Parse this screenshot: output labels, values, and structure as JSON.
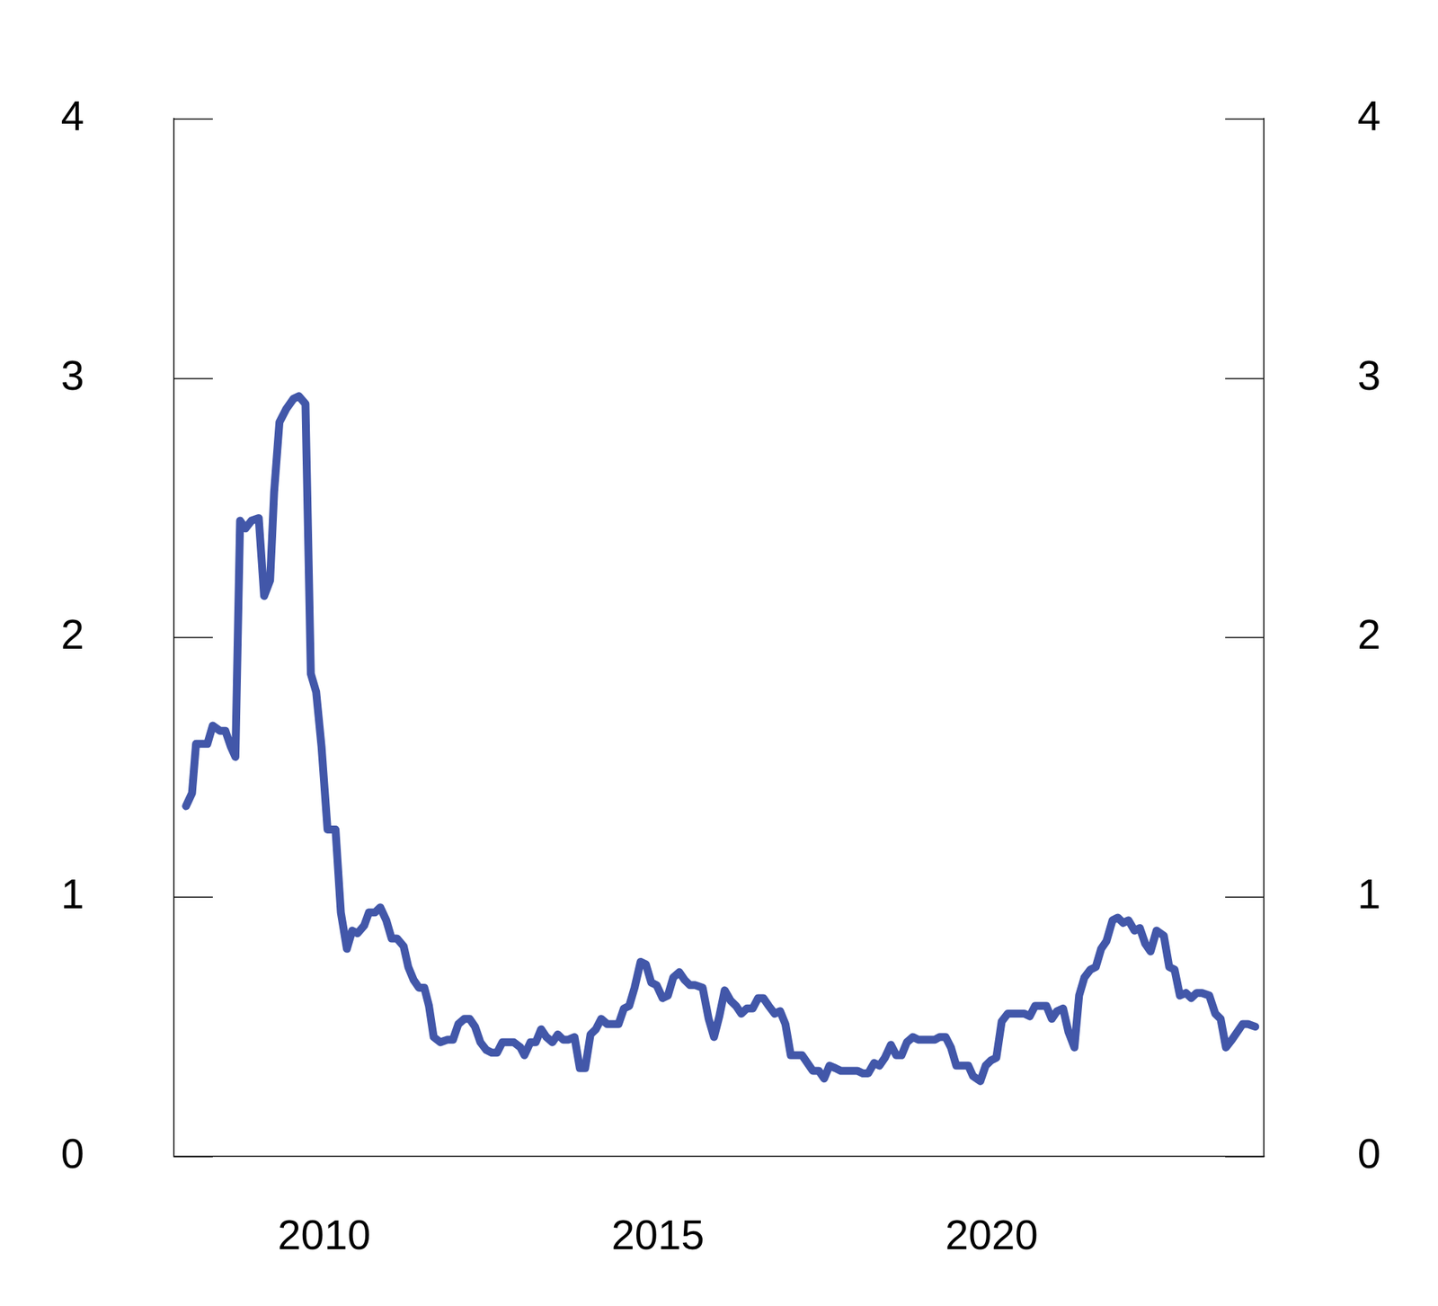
{
  "chart_data": {
    "type": "line",
    "x": [
      2007.93,
      2008.02,
      2008.08,
      2008.25,
      2008.33,
      2008.44,
      2008.52,
      2008.6,
      2008.67,
      2008.74,
      2008.82,
      2008.91,
      2009.02,
      2009.1,
      2009.19,
      2009.25,
      2009.33,
      2009.43,
      2009.54,
      2009.62,
      2009.72,
      2009.8,
      2009.88,
      2009.96,
      2010.05,
      2010.17,
      2010.25,
      2010.34,
      2010.42,
      2010.5,
      2010.6,
      2010.67,
      2010.76,
      2010.84,
      2010.93,
      2011.01,
      2011.09,
      2011.19,
      2011.26,
      2011.34,
      2011.42,
      2011.5,
      2011.57,
      2011.64,
      2011.74,
      2011.85,
      2011.93,
      2012.01,
      2012.1,
      2012.18,
      2012.26,
      2012.34,
      2012.43,
      2012.51,
      2012.59,
      2012.67,
      2012.84,
      2012.94,
      2013.0,
      2013.09,
      2013.17,
      2013.25,
      2013.33,
      2013.42,
      2013.5,
      2013.58,
      2013.66,
      2013.75,
      2013.83,
      2013.91,
      2013.99,
      2014.07,
      2014.15,
      2014.24,
      2014.41,
      2014.49,
      2014.57,
      2014.65,
      2014.74,
      2014.82,
      2014.9,
      2014.98,
      2015.07,
      2015.15,
      2015.23,
      2015.32,
      2015.4,
      2015.48,
      2015.56,
      2015.67,
      2015.76,
      2015.84,
      2015.92,
      2016.0,
      2016.09,
      2016.17,
      2016.25,
      2016.33,
      2016.42,
      2016.5,
      2016.58,
      2016.66,
      2016.75,
      2016.83,
      2016.91,
      2016.99,
      2017.08,
      2017.16,
      2017.24,
      2017.32,
      2017.41,
      2017.49,
      2017.57,
      2017.66,
      2017.74,
      2017.82,
      2017.99,
      2018.07,
      2018.15,
      2018.24,
      2018.32,
      2018.4,
      2018.49,
      2018.57,
      2018.65,
      2018.73,
      2018.82,
      2018.9,
      2019.15,
      2019.22,
      2019.31,
      2019.39,
      2019.47,
      2019.55,
      2019.65,
      2019.72,
      2019.83,
      2019.91,
      2019.99,
      2020.07,
      2020.15,
      2020.24,
      2020.4,
      2020.49,
      2020.57,
      2020.65,
      2020.82,
      2020.9,
      2020.98,
      2021.07,
      2021.15,
      2021.24,
      2021.31,
      2021.39,
      2021.48,
      2021.56,
      2021.64,
      2021.72,
      2021.81,
      2021.89,
      2021.97,
      2022.05,
      2022.14,
      2022.22,
      2022.3,
      2022.38,
      2022.47,
      2022.58,
      2022.66,
      2022.74,
      2022.82,
      2022.91,
      2022.99,
      2023.07,
      2023.15,
      2023.26,
      2023.35,
      2023.43,
      2023.51,
      2023.6,
      2023.68,
      2023.76,
      2023.84,
      2023.95
    ],
    "values": [
      1.35,
      1.4,
      1.59,
      1.59,
      1.66,
      1.64,
      1.64,
      1.58,
      1.54,
      2.45,
      2.42,
      2.45,
      2.46,
      2.16,
      2.22,
      2.56,
      2.83,
      2.88,
      2.92,
      2.93,
      2.9,
      1.86,
      1.79,
      1.58,
      1.26,
      1.26,
      0.94,
      0.8,
      0.87,
      0.86,
      0.89,
      0.94,
      0.94,
      0.96,
      0.91,
      0.84,
      0.84,
      0.81,
      0.73,
      0.68,
      0.65,
      0.65,
      0.58,
      0.46,
      0.44,
      0.45,
      0.45,
      0.51,
      0.53,
      0.53,
      0.5,
      0.44,
      0.41,
      0.4,
      0.4,
      0.44,
      0.44,
      0.42,
      0.39,
      0.44,
      0.44,
      0.49,
      0.46,
      0.44,
      0.47,
      0.45,
      0.45,
      0.46,
      0.34,
      0.34,
      0.47,
      0.49,
      0.53,
      0.51,
      0.51,
      0.57,
      0.58,
      0.65,
      0.75,
      0.74,
      0.67,
      0.66,
      0.61,
      0.62,
      0.69,
      0.71,
      0.68,
      0.66,
      0.66,
      0.65,
      0.53,
      0.46,
      0.54,
      0.64,
      0.6,
      0.58,
      0.55,
      0.57,
      0.57,
      0.61,
      0.61,
      0.58,
      0.55,
      0.56,
      0.51,
      0.39,
      0.39,
      0.39,
      0.36,
      0.33,
      0.33,
      0.3,
      0.35,
      0.34,
      0.33,
      0.33,
      0.33,
      0.32,
      0.32,
      0.36,
      0.35,
      0.38,
      0.43,
      0.39,
      0.39,
      0.44,
      0.46,
      0.45,
      0.45,
      0.46,
      0.46,
      0.42,
      0.35,
      0.35,
      0.35,
      0.31,
      0.29,
      0.35,
      0.37,
      0.38,
      0.52,
      0.55,
      0.55,
      0.55,
      0.54,
      0.58,
      0.58,
      0.53,
      0.56,
      0.57,
      0.48,
      0.42,
      0.62,
      0.69,
      0.72,
      0.73,
      0.8,
      0.83,
      0.91,
      0.92,
      0.9,
      0.91,
      0.87,
      0.88,
      0.82,
      0.79,
      0.87,
      0.85,
      0.73,
      0.72,
      0.62,
      0.63,
      0.61,
      0.63,
      0.63,
      0.62,
      0.55,
      0.53,
      0.42,
      0.45,
      0.48,
      0.51,
      0.51,
      0.5
    ],
    "color": "#4257a9",
    "xlim": [
      2007.75,
      2024.08
    ],
    "xticks": [
      2010,
      2015,
      2020
    ],
    "ylim": [
      0,
      4
    ],
    "yticks": [
      0,
      1,
      2,
      3,
      4
    ],
    "y2lim": [
      0,
      4
    ],
    "y2ticks": [
      0,
      1,
      2,
      3,
      4
    ],
    "grid": false,
    "legend": false
  }
}
